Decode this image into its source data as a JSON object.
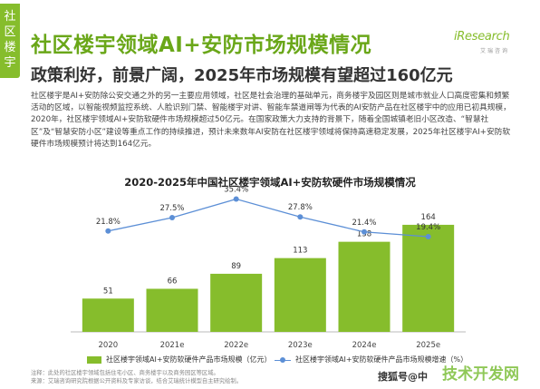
{
  "side_tab": {
    "chars": [
      "社",
      "区",
      "楼",
      "宇"
    ]
  },
  "header": {
    "title": "社区楼宇领域AI+安防市场规模情况",
    "subtitle": "政策利好，前景广阔，2025年市场规模有望超过160亿元"
  },
  "logo": {
    "text": "iResearch",
    "sub": "艾瑞咨询"
  },
  "body": {
    "paragraph": "社区楼宇是AI+安防除公安交通之外的另一主要应用领域，社区是社会治理的基础单元，商务楼宇及园区则是城市就业人口高度密集和频繁活动的区域，以智能视频监控系统、人脸识别门禁、智能楼宇对讲、智能车禁道闸等为代表的AI安防产品在社区楼宇中的应用已初具规模，2020年，社区楼宇领域AI+安防软硬件市场规模超过50亿元。在国家政策大力支持的背景下，随着全国城镇老旧小区改造、“智慧社区”及“智慧安防小区”建设等重点工作的持续推进，预计未来数年AI安防在社区楼宇领域将保持高速稳定发展，2025年社区楼宇AI+安防软硬件市场规模预计将达到164亿元。"
  },
  "chart_data": {
    "type": "bar",
    "title": "2020-2025年中国社区楼宇领域AI+安防软硬件市场规模情况",
    "categories": [
      "2020",
      "2021e",
      "2022e",
      "2023e",
      "2024e",
      "2025e"
    ],
    "series": [
      {
        "name": "社区楼宇领域AI+安防软硬件产品市场规模（亿元）",
        "kind": "bar",
        "values": [
          51,
          66,
          89,
          113,
          138,
          164
        ],
        "color": "#86bd2c"
      },
      {
        "name": "社区楼宇领域AI+安防软硬件产品市场规模增速（%）",
        "kind": "line",
        "values": [
          21.8,
          27.5,
          35.4,
          27.8,
          21.4,
          19.4
        ],
        "labels": [
          "21.8%",
          "27.5%",
          "35.4%",
          "27.8%",
          "21.4%",
          "19.4%"
        ],
        "color": "#5c8fd6"
      }
    ],
    "bar_ylim": [
      0,
      180
    ],
    "line_ylim": [
      0,
      40
    ]
  },
  "footnote": {
    "line1": "注释：此处的社区楼宇领域包括住宅小区、商务楼宇以及商务园区等区域。",
    "line2": "来源：艾瑞咨询研究院根据公开资料及专家访谈，结合艾瑞统计模型自主研究绘制。"
  },
  "watermark": {
    "text": "搜狐号@中",
    "brand": "技术开发网"
  }
}
